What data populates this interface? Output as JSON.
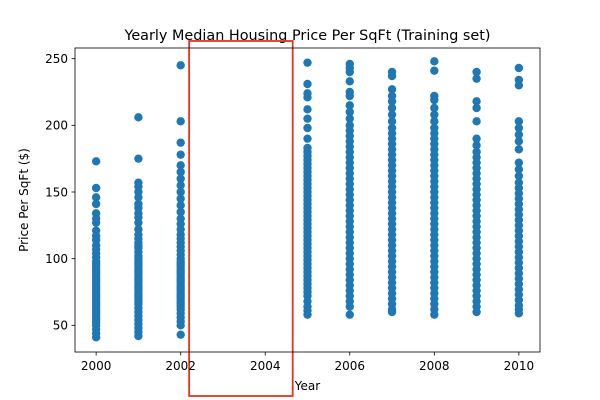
{
  "chart_data": {
    "type": "scatter",
    "title": "Yearly Median Housing Price Per SqFt (Training set)",
    "xlabel": "Year",
    "ylabel": "Price Per SqFt ($)",
    "xlim": [
      1999.5,
      2010.5
    ],
    "ylim": [
      30,
      258
    ],
    "xticks": [
      2000,
      2002,
      2004,
      2006,
      2008,
      2010
    ],
    "yticks": [
      50,
      100,
      150,
      200,
      250
    ],
    "grid": false,
    "legend": "none",
    "marker_color": "#1f77b4",
    "highlight": {
      "x_range": [
        2002.2,
        2004.65
      ],
      "color": "#e8321e"
    },
    "series": [
      {
        "points": [
          {
            "year": 2000,
            "prices": [
              173,
              153,
              146,
              141,
              134,
              130,
              127,
              121,
              117,
              114,
              110,
              107,
              104,
              101,
              98,
              96,
              94,
              92,
              90,
              88,
              86,
              84,
              82,
              80,
              78,
              76,
              74,
              72,
              70,
              68,
              66,
              64,
              62,
              60,
              58,
              56,
              54,
              52,
              50,
              47,
              44,
              41
            ]
          },
          {
            "year": 2001,
            "prices": [
              206,
              175,
              157,
              154,
              150,
              146,
              141,
              138,
              134,
              131,
              127,
              122,
              118,
              115,
              112,
              110,
              108,
              105,
              102,
              100,
              98,
              96,
              94,
              92,
              90,
              88,
              86,
              84,
              82,
              80,
              78,
              76,
              74,
              72,
              70,
              68,
              66,
              63,
              60,
              57,
              54,
              51,
              48,
              45,
              42
            ]
          },
          {
            "year": 2002,
            "prices": [
              245,
              203,
              187,
              178,
              170,
              165,
              160,
              155,
              150,
              145,
              140,
              135,
              130,
              126,
              122,
              118,
              115,
              112,
              109,
              106,
              103,
              100,
              98,
              96,
              94,
              92,
              90,
              88,
              86,
              84,
              82,
              80,
              78,
              76,
              74,
              72,
              70,
              68,
              66,
              64,
              62,
              59,
              56,
              53,
              50,
              43
            ]
          },
          {
            "year": 2005,
            "prices": [
              247,
              231,
              224,
              221,
              212,
              205,
              198,
              190,
              183,
              180,
              177,
              174,
              171,
              168,
              165,
              162,
              159,
              156,
              153,
              150,
              147,
              144,
              141,
              138,
              135,
              132,
              129,
              126,
              123,
              120,
              117,
              114,
              111,
              108,
              105,
              102,
              99,
              96,
              93,
              90,
              87,
              84,
              81,
              78,
              75,
              72,
              68,
              64,
              61,
              58
            ]
          },
          {
            "year": 2006,
            "prices": [
              246,
              243,
              240,
              233,
              225,
              222,
              215,
              210,
              205,
              200,
              196,
              192,
              188,
              184,
              180,
              176,
              172,
              168,
              164,
              160,
              156,
              152,
              148,
              144,
              140,
              136,
              132,
              128,
              124,
              120,
              116,
              112,
              108,
              104,
              100,
              96,
              92,
              88,
              84,
              80,
              76,
              72,
              68,
              64,
              58
            ]
          },
          {
            "year": 2007,
            "prices": [
              240,
              237,
              227,
              222,
              218,
              213,
              208,
              203,
              198,
              194,
              190,
              186,
              182,
              178,
              174,
              170,
              166,
              162,
              158,
              154,
              150,
              146,
              142,
              138,
              134,
              130,
              126,
              122,
              118,
              114,
              110,
              106,
              102,
              98,
              94,
              90,
              86,
              82,
              78,
              74,
              70,
              66,
              62,
              60
            ]
          },
          {
            "year": 2008,
            "prices": [
              248,
              241,
              222,
              219,
              213,
              208,
              203,
              198,
              194,
              190,
              186,
              182,
              178,
              174,
              170,
              166,
              162,
              158,
              154,
              150,
              146,
              142,
              138,
              134,
              130,
              126,
              122,
              118,
              114,
              110,
              106,
              102,
              98,
              94,
              90,
              86,
              82,
              78,
              74,
              70,
              66,
              62,
              58
            ]
          },
          {
            "year": 2009,
            "prices": [
              240,
              235,
              218,
              213,
              203,
              190,
              185,
              180,
              176,
              172,
              168,
              164,
              160,
              156,
              152,
              148,
              144,
              140,
              136,
              132,
              128,
              124,
              120,
              116,
              112,
              108,
              104,
              100,
              96,
              92,
              88,
              84,
              80,
              76,
              72,
              68,
              64,
              60
            ]
          },
          {
            "year": 2010,
            "prices": [
              243,
              234,
              230,
              203,
              198,
              193,
              188,
              182,
              172,
              167,
              162,
              157,
              153,
              149,
              145,
              141,
              137,
              133,
              129,
              125,
              121,
              117,
              113,
              109,
              105,
              101,
              97,
              93,
              89,
              85,
              81,
              77,
              73,
              69,
              65,
              62,
              59
            ]
          }
        ]
      }
    ]
  }
}
